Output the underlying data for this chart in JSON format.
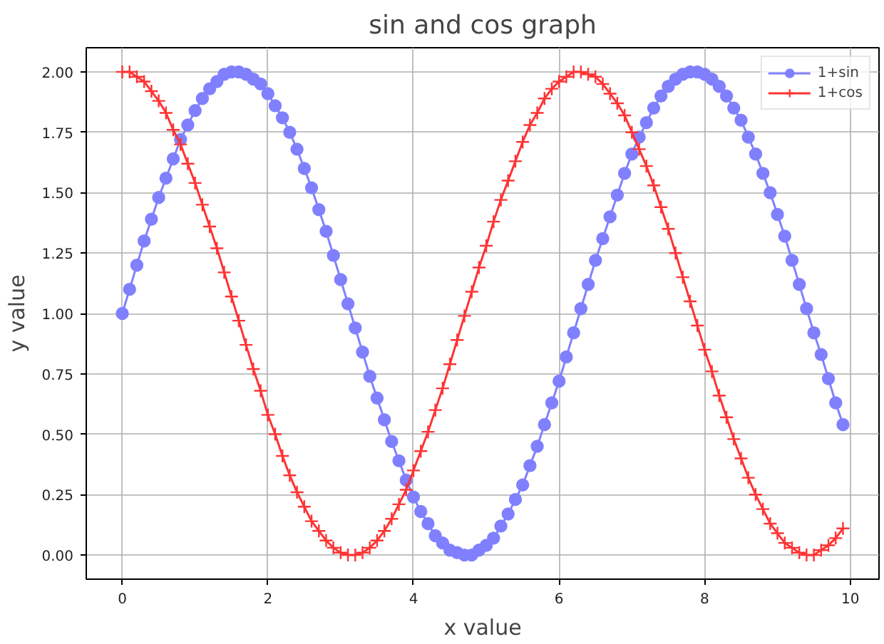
{
  "chart_data": {
    "type": "line",
    "title": "sin and cos graph",
    "xlabel": "x value",
    "ylabel": "y value",
    "x": [
      0,
      0.1,
      0.2,
      0.3,
      0.4,
      0.5,
      0.6,
      0.7,
      0.8,
      0.9,
      1,
      1.1,
      1.2,
      1.3,
      1.4,
      1.5,
      1.6,
      1.7,
      1.8,
      1.9,
      2,
      2.1,
      2.2,
      2.3,
      2.4,
      2.5,
      2.6,
      2.7,
      2.8,
      2.9,
      3,
      3.1,
      3.2,
      3.3,
      3.4,
      3.5,
      3.6,
      3.7,
      3.8,
      3.9,
      4,
      4.1,
      4.2,
      4.3,
      4.4,
      4.5,
      4.6,
      4.7,
      4.8,
      4.9,
      5,
      5.1,
      5.2,
      5.3,
      5.4,
      5.5,
      5.6,
      5.7,
      5.8,
      5.9,
      6,
      6.1,
      6.2,
      6.3,
      6.4,
      6.5,
      6.6,
      6.7,
      6.8,
      6.9,
      7,
      7.1,
      7.2,
      7.3,
      7.4,
      7.5,
      7.6,
      7.7,
      7.8,
      7.9,
      8,
      8.1,
      8.2,
      8.3,
      8.4,
      8.5,
      8.6,
      8.7,
      8.8,
      8.9,
      9,
      9.1,
      9.2,
      9.3,
      9.4,
      9.5,
      9.6,
      9.7,
      9.8,
      9.9
    ],
    "series": [
      {
        "name": "1+sin",
        "color": "#8080ff",
        "marker": "circle",
        "line_style": "solid",
        "values": [
          1.0,
          1.1,
          1.2,
          1.3,
          1.39,
          1.48,
          1.56,
          1.64,
          1.72,
          1.78,
          1.84,
          1.89,
          1.93,
          1.96,
          1.99,
          2.0,
          2.0,
          1.99,
          1.97,
          1.95,
          1.91,
          1.86,
          1.81,
          1.75,
          1.68,
          1.6,
          1.52,
          1.43,
          1.34,
          1.24,
          1.14,
          1.04,
          0.94,
          0.84,
          0.74,
          0.65,
          0.56,
          0.47,
          0.39,
          0.31,
          0.24,
          0.18,
          0.13,
          0.08,
          0.05,
          0.02,
          0.01,
          0.0,
          0.0,
          0.02,
          0.04,
          0.07,
          0.12,
          0.17,
          0.23,
          0.29,
          0.37,
          0.45,
          0.54,
          0.63,
          0.72,
          0.82,
          0.92,
          1.02,
          1.12,
          1.22,
          1.31,
          1.4,
          1.49,
          1.58,
          1.66,
          1.73,
          1.79,
          1.85,
          1.9,
          1.94,
          1.97,
          1.99,
          2.0,
          2.0,
          1.99,
          1.97,
          1.94,
          1.9,
          1.85,
          1.8,
          1.73,
          1.66,
          1.58,
          1.5,
          1.41,
          1.32,
          1.22,
          1.12,
          1.02,
          0.92,
          0.83,
          0.73,
          0.63,
          0.54
        ]
      },
      {
        "name": "1+cos",
        "color": "#ff3333",
        "marker": "cross",
        "line_style": "solid",
        "values": [
          2.0,
          2.0,
          1.98,
          1.96,
          1.92,
          1.88,
          1.83,
          1.76,
          1.7,
          1.62,
          1.54,
          1.45,
          1.36,
          1.27,
          1.17,
          1.07,
          0.97,
          0.87,
          0.77,
          0.68,
          0.58,
          0.5,
          0.41,
          0.33,
          0.26,
          0.2,
          0.14,
          0.1,
          0.06,
          0.03,
          0.01,
          0.0,
          0.0,
          0.01,
          0.03,
          0.06,
          0.1,
          0.15,
          0.21,
          0.27,
          0.35,
          0.43,
          0.51,
          0.6,
          0.69,
          0.79,
          0.89,
          0.99,
          1.09,
          1.19,
          1.28,
          1.38,
          1.47,
          1.55,
          1.63,
          1.71,
          1.78,
          1.83,
          1.89,
          1.93,
          1.96,
          1.98,
          2.0,
          2.0,
          1.99,
          1.98,
          1.95,
          1.91,
          1.87,
          1.82,
          1.75,
          1.68,
          1.61,
          1.53,
          1.44,
          1.35,
          1.25,
          1.15,
          1.05,
          0.95,
          0.85,
          0.76,
          0.66,
          0.57,
          0.48,
          0.4,
          0.32,
          0.25,
          0.19,
          0.13,
          0.09,
          0.05,
          0.03,
          0.01,
          0.0,
          0.0,
          0.02,
          0.04,
          0.07,
          0.11
        ]
      }
    ],
    "xlim": [
      -0.495,
      10.395
    ],
    "ylim": [
      -0.1,
      2.1
    ],
    "xticks": [
      0,
      2,
      4,
      6,
      8,
      10
    ],
    "yticks": [
      {
        "value": 0,
        "label": "0.00"
      },
      0.25,
      {
        "value": 0.5,
        "label": "0.50"
      },
      0.75,
      {
        "value": 1,
        "label": "1.00"
      },
      1.25,
      {
        "value": 1.5,
        "label": "1.50"
      },
      1.75,
      {
        "value": 2,
        "label": "2.00"
      }
    ],
    "grid": true,
    "legend": "top right"
  }
}
